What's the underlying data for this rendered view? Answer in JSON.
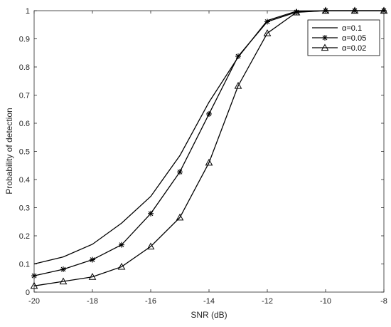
{
  "chart_data": {
    "type": "line",
    "xlabel": "SNR (dB)",
    "ylabel": "Probability of detection",
    "xlim": [
      -20,
      -8
    ],
    "ylim": [
      0,
      1
    ],
    "xticks": [
      "-20",
      "-18",
      "-16",
      "-14",
      "-12",
      "-10",
      "-8"
    ],
    "yticks": [
      "0",
      "0.1",
      "0.2",
      "0.3",
      "0.4",
      "0.5",
      "0.6",
      "0.7",
      "0.8",
      "0.9",
      "1"
    ],
    "grid": false,
    "legend_position": "top-right",
    "x": [
      -20,
      -19,
      -18,
      -17,
      -16,
      -15,
      -14,
      -13,
      -12,
      -11,
      -10,
      -9,
      -8
    ],
    "series": [
      {
        "name": "α=0.1",
        "marker": "none",
        "values": [
          0.1,
          0.125,
          0.17,
          0.245,
          0.34,
          0.485,
          0.675,
          0.835,
          0.965,
          0.998,
          1.0,
          1.0,
          1.0
        ]
      },
      {
        "name": "α=0.05",
        "marker": "star",
        "values": [
          0.058,
          0.081,
          0.115,
          0.168,
          0.279,
          0.427,
          0.633,
          0.838,
          0.961,
          0.995,
          1.0,
          1.0,
          1.0
        ]
      },
      {
        "name": "α=0.02",
        "marker": "triangle",
        "values": [
          0.022,
          0.038,
          0.054,
          0.09,
          0.162,
          0.265,
          0.46,
          0.733,
          0.92,
          0.994,
          1.0,
          1.0,
          1.0
        ]
      }
    ]
  }
}
